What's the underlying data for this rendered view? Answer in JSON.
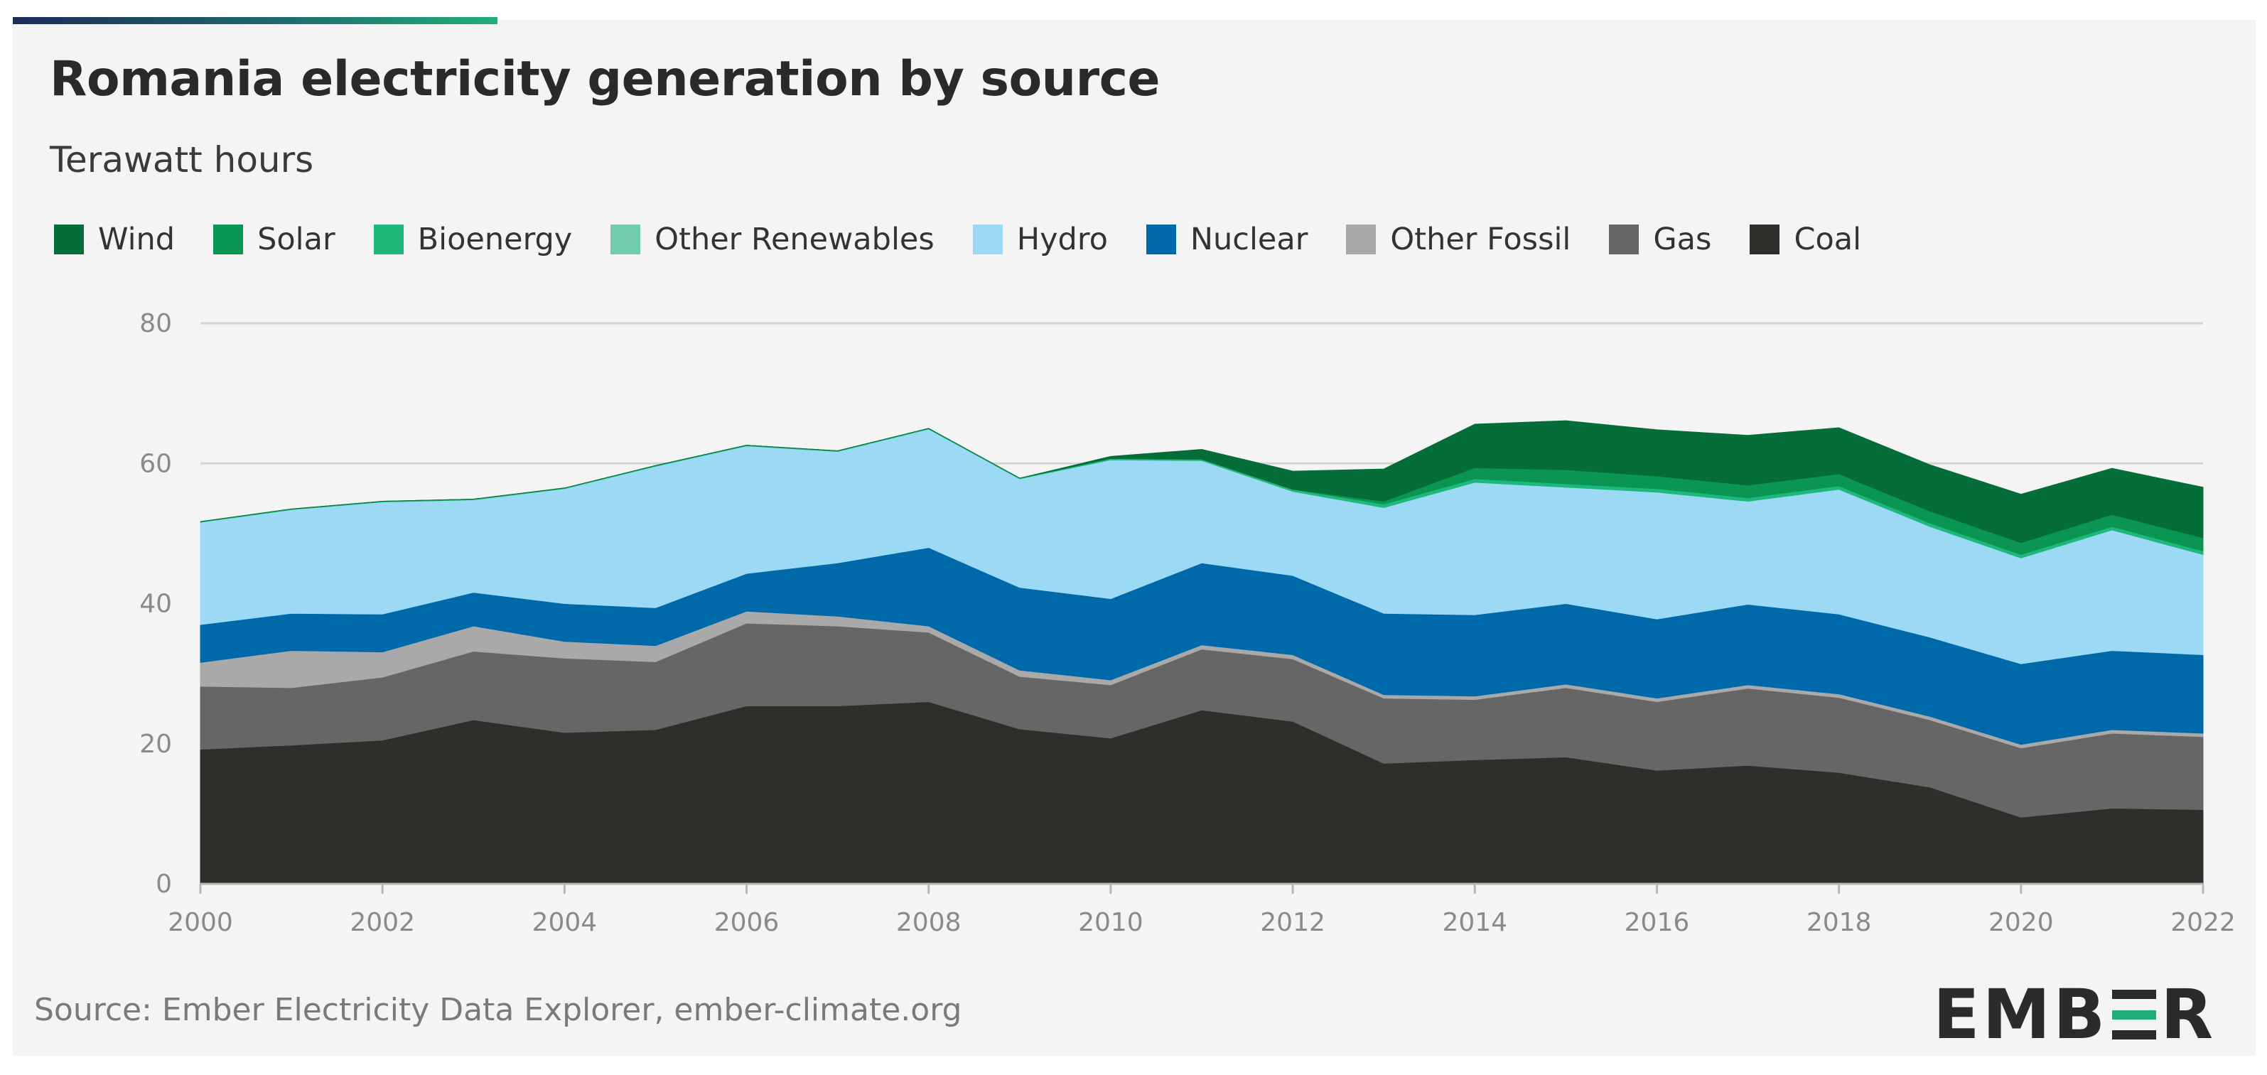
{
  "header": {
    "title": "Romania electricity generation by source",
    "subtitle": "Terawatt hours"
  },
  "footer": {
    "source": "Source: Ember Electricity Data Explorer, ember-climate.org",
    "logo_text_left": "EMB",
    "logo_text_right": "R"
  },
  "colors": {
    "accent_start": "#1c2b57",
    "accent_end": "#1fb07a",
    "background": "#f4f4f4"
  },
  "chart_data": {
    "type": "area",
    "stacked": true,
    "title": "Romania electricity generation by source",
    "ylabel": "Terawatt hours",
    "xlabel": "",
    "x": [
      2000,
      2001,
      2002,
      2003,
      2004,
      2005,
      2006,
      2007,
      2008,
      2009,
      2010,
      2011,
      2012,
      2013,
      2014,
      2015,
      2016,
      2017,
      2018,
      2019,
      2020,
      2021,
      2022
    ],
    "xticks": [
      "2000",
      "2002",
      "2004",
      "2006",
      "2008",
      "2010",
      "2012",
      "2014",
      "2016",
      "2018",
      "2020",
      "2022"
    ],
    "yticks": [
      "0",
      "20",
      "40",
      "60",
      "80"
    ],
    "ylim": [
      0,
      80
    ],
    "grid": true,
    "legend_position": "top-left",
    "series": [
      {
        "name": "Coal",
        "color": "#2e2e2b",
        "values": [
          19.2,
          19.8,
          20.5,
          23.4,
          21.6,
          22.0,
          25.4,
          25.4,
          26.0,
          22.1,
          20.8,
          24.8,
          23.2,
          17.2,
          17.7,
          18.1,
          16.2,
          16.9,
          15.9,
          13.8,
          9.5,
          10.8,
          10.6
        ]
      },
      {
        "name": "Gas",
        "color": "#666666",
        "values": [
          9.0,
          8.2,
          9.0,
          9.8,
          10.6,
          9.7,
          11.8,
          11.4,
          9.9,
          7.5,
          7.6,
          8.7,
          8.9,
          9.3,
          8.6,
          9.9,
          9.8,
          11.0,
          10.7,
          9.6,
          9.9,
          10.7,
          10.4
        ]
      },
      {
        "name": "Other Fossil",
        "color": "#a9a9a9",
        "values": [
          3.4,
          5.3,
          3.6,
          3.6,
          2.4,
          2.3,
          1.7,
          1.4,
          0.9,
          0.9,
          0.7,
          0.6,
          0.6,
          0.5,
          0.5,
          0.5,
          0.5,
          0.5,
          0.5,
          0.5,
          0.5,
          0.5,
          0.5
        ]
      },
      {
        "name": "Nuclear",
        "color": "#0069aa",
        "values": [
          5.4,
          5.3,
          5.4,
          4.8,
          5.4,
          5.4,
          5.4,
          7.6,
          11.2,
          11.8,
          11.6,
          11.7,
          11.3,
          11.6,
          11.6,
          11.5,
          11.3,
          11.5,
          11.4,
          11.3,
          11.5,
          11.3,
          11.2
        ]
      },
      {
        "name": "Hydro",
        "color": "#9bd9f5",
        "values": [
          14.6,
          14.8,
          16.0,
          13.2,
          16.4,
          20.2,
          18.2,
          15.9,
          16.9,
          15.5,
          19.8,
          14.6,
          12.0,
          15.1,
          18.9,
          16.6,
          18.1,
          14.7,
          17.8,
          15.8,
          15.1,
          17.2,
          14.3
        ]
      },
      {
        "name": "Other Renewables",
        "color": "#74ccae",
        "values": [
          0,
          0,
          0,
          0,
          0,
          0,
          0,
          0,
          0,
          0,
          0,
          0,
          0,
          0,
          0,
          0,
          0,
          0,
          0,
          0,
          0,
          0,
          0
        ]
      },
      {
        "name": "Bioenergy",
        "color": "#1fb87c",
        "values": [
          0.1,
          0.1,
          0.1,
          0.1,
          0.1,
          0.1,
          0.1,
          0.1,
          0.1,
          0.1,
          0.2,
          0.2,
          0.3,
          0.5,
          0.5,
          0.5,
          0.5,
          0.5,
          0.5,
          0.5,
          0.5,
          0.5,
          0.5
        ]
      },
      {
        "name": "Solar",
        "color": "#0a9552",
        "values": [
          0,
          0,
          0,
          0,
          0,
          0,
          0,
          0,
          0,
          0,
          0,
          0,
          0,
          0.4,
          1.6,
          2.0,
          1.8,
          1.8,
          1.7,
          1.7,
          1.7,
          1.7,
          1.9
        ]
      },
      {
        "name": "Wind",
        "color": "#056d37",
        "values": [
          0,
          0,
          0,
          0,
          0,
          0,
          0,
          0,
          0,
          0,
          0.3,
          1.4,
          2.6,
          4.6,
          6.2,
          7.0,
          6.6,
          7.1,
          6.6,
          6.6,
          6.9,
          6.6,
          7.2
        ]
      }
    ],
    "legend_order": [
      "Wind",
      "Solar",
      "Bioenergy",
      "Other Renewables",
      "Hydro",
      "Nuclear",
      "Other Fossil",
      "Gas",
      "Coal"
    ]
  }
}
